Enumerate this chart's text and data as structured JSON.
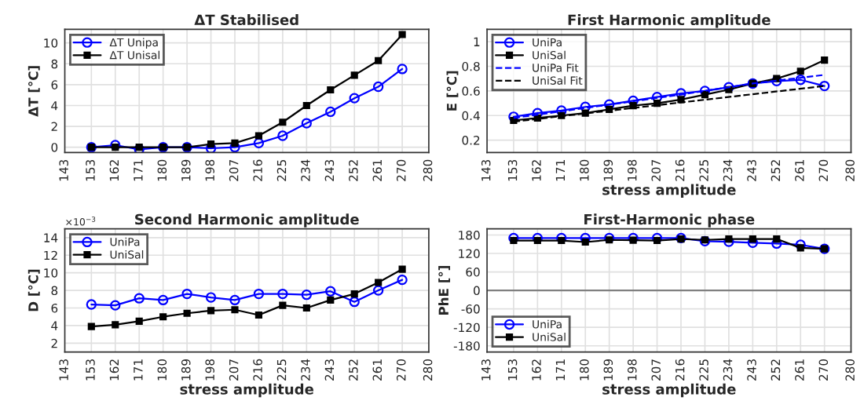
{
  "chart_data": [
    {
      "type": "line",
      "title": "ΔT Stabilised",
      "ylabel": "ΔT [°C]",
      "x": [
        153,
        162,
        171,
        180,
        189,
        198,
        207,
        216,
        225,
        234,
        243,
        252,
        261,
        270
      ],
      "xlim": [
        143,
        280
      ],
      "xticks": [
        143,
        153,
        162,
        171,
        180,
        189,
        198,
        207,
        216,
        225,
        234,
        243,
        252,
        261,
        270,
        280
      ],
      "ylim": [
        -0.5,
        11.3
      ],
      "yticks": [
        0,
        2,
        4,
        6,
        8,
        10
      ],
      "grid": true,
      "legend": "top left",
      "series": [
        {
          "name": "ΔT Unipa",
          "color": "#0000ff",
          "marker": "circle",
          "values": [
            0.0,
            0.2,
            -0.2,
            0.0,
            0.0,
            -0.1,
            0.0,
            0.4,
            1.1,
            2.3,
            3.4,
            4.7,
            5.8,
            7.5
          ]
        },
        {
          "name": "ΔT Unisal",
          "color": "#000000",
          "marker": "square",
          "values": [
            0.0,
            0.0,
            0.0,
            0.0,
            0.0,
            0.3,
            0.4,
            1.1,
            2.4,
            4.0,
            5.5,
            6.9,
            8.3,
            10.8
          ]
        }
      ]
    },
    {
      "type": "line",
      "title": "First Harmonic amplitude",
      "xlabel": "stress amplitude",
      "ylabel": "E [°C]",
      "x": [
        153,
        162,
        171,
        180,
        189,
        198,
        207,
        216,
        225,
        234,
        243,
        252,
        261,
        270
      ],
      "xlim": [
        143,
        280
      ],
      "xticks": [
        143,
        153,
        162,
        171,
        180,
        189,
        198,
        207,
        216,
        225,
        234,
        243,
        252,
        261,
        270,
        280
      ],
      "ylim": [
        0.1,
        1.1
      ],
      "yticks": [
        0.2,
        0.4,
        0.6,
        0.8,
        1
      ],
      "grid": true,
      "legend": "top left",
      "series": [
        {
          "name": "UniPa",
          "color": "#0000ff",
          "marker": "circle",
          "values": [
            0.39,
            0.42,
            0.44,
            0.47,
            0.49,
            0.52,
            0.55,
            0.58,
            0.6,
            0.63,
            0.66,
            0.68,
            0.69,
            0.64
          ]
        },
        {
          "name": "UniSal",
          "color": "#000000",
          "marker": "square",
          "values": [
            0.36,
            0.38,
            0.4,
            0.42,
            0.45,
            0.48,
            0.5,
            0.53,
            0.57,
            0.61,
            0.66,
            0.7,
            0.76,
            0.85
          ]
        },
        {
          "name": "UniPa Fit",
          "color": "#0000ff",
          "marker": "none",
          "line_style": "dashed",
          "x": [
            153,
            216,
            243,
            270
          ],
          "values": [
            0.38,
            0.57,
            0.66,
            0.73
          ]
        },
        {
          "name": "UniSal Fit",
          "color": "#000000",
          "marker": "none",
          "line_style": "dashed",
          "x": [
            153,
            270
          ],
          "values": [
            0.35,
            0.64
          ]
        }
      ]
    },
    {
      "type": "line",
      "title": "Second Harmonic amplitude",
      "xlabel": "stress amplitude",
      "ylabel": "D [°C]",
      "annotations": [
        "×10$^{−3}$"
      ],
      "x": [
        153,
        162,
        171,
        180,
        189,
        198,
        207,
        216,
        225,
        234,
        243,
        252,
        261,
        270
      ],
      "xlim": [
        143,
        280
      ],
      "xticks": [
        143,
        153,
        162,
        171,
        180,
        189,
        198,
        207,
        216,
        225,
        234,
        243,
        252,
        261,
        270,
        280
      ],
      "ylim": [
        1,
        15
      ],
      "yticks": [
        2,
        4,
        6,
        8,
        10,
        12,
        14
      ],
      "grid": true,
      "legend": "top left",
      "series": [
        {
          "name": "UniPa",
          "color": "#0000ff",
          "marker": "circle",
          "values": [
            6.4,
            6.3,
            7.1,
            6.9,
            7.6,
            7.2,
            6.9,
            7.6,
            7.6,
            7.5,
            7.9,
            6.7,
            8.0,
            9.2
          ]
        },
        {
          "name": "UniSal",
          "color": "#000000",
          "marker": "square",
          "values": [
            3.9,
            4.1,
            4.5,
            5.0,
            5.4,
            5.7,
            5.8,
            5.2,
            6.3,
            6.0,
            6.9,
            7.6,
            8.9,
            10.4
          ]
        }
      ]
    },
    {
      "type": "line",
      "title": "First-Harmonic phase",
      "xlabel": "stress amplitude",
      "ylabel": "PhE [°]",
      "x": [
        153,
        162,
        171,
        180,
        189,
        198,
        207,
        216,
        225,
        234,
        243,
        252,
        261,
        270
      ],
      "xlim": [
        143,
        280
      ],
      "xticks": [
        143,
        153,
        162,
        171,
        180,
        189,
        198,
        207,
        216,
        225,
        234,
        243,
        252,
        261,
        270,
        280
      ],
      "ylim": [
        -200,
        200
      ],
      "yticks": [
        -180,
        -120,
        -60,
        0,
        60,
        120,
        180
      ],
      "grid": true,
      "legend": "bottom left",
      "ref_lines": [
        {
          "axis": "y",
          "value": 0,
          "color": "#808080"
        }
      ],
      "series": [
        {
          "name": "UniPa",
          "color": "#0000ff",
          "marker": "circle",
          "values": [
            170,
            170,
            170,
            170,
            170,
            170,
            170,
            170,
            160,
            158,
            155,
            152,
            148,
            135
          ]
        },
        {
          "name": "UniSal",
          "color": "#000000",
          "marker": "square",
          "values": [
            162,
            162,
            162,
            157,
            164,
            163,
            162,
            167,
            164,
            167,
            167,
            167,
            138,
            135
          ]
        }
      ]
    }
  ]
}
